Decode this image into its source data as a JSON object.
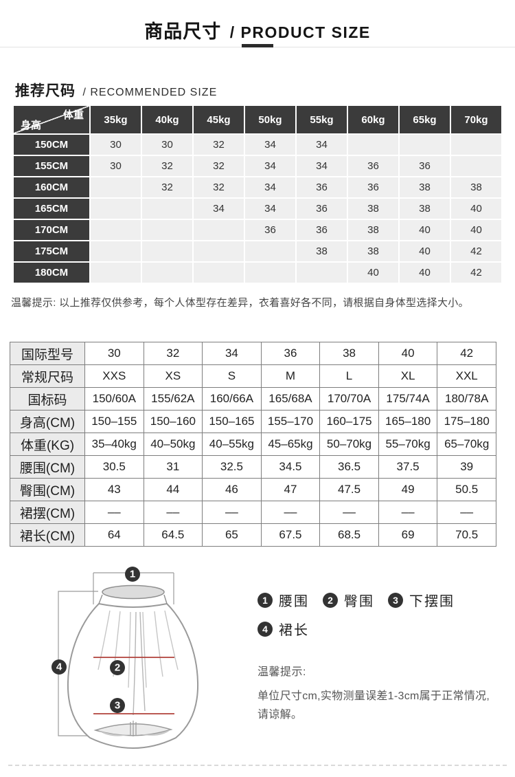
{
  "page": {
    "title_cn": "商品尺寸",
    "title_en": "/ PRODUCT SIZE"
  },
  "recommended": {
    "heading_cn": "推荐尺码",
    "heading_en": "/ RECOMMENDED SIZE",
    "table": {
      "corner": {
        "top_right": "体重",
        "bottom_left": "身高"
      },
      "weight_headers": [
        "35kg",
        "40kg",
        "45kg",
        "50kg",
        "55kg",
        "60kg",
        "65kg",
        "70kg"
      ],
      "rows": [
        {
          "height": "150CM",
          "values": [
            "30",
            "30",
            "32",
            "34",
            "34",
            "",
            "",
            ""
          ]
        },
        {
          "height": "155CM",
          "values": [
            "30",
            "32",
            "32",
            "34",
            "34",
            "36",
            "36",
            ""
          ]
        },
        {
          "height": "160CM",
          "values": [
            "",
            "32",
            "32",
            "34",
            "36",
            "36",
            "38",
            "38"
          ]
        },
        {
          "height": "165CM",
          "values": [
            "",
            "",
            "34",
            "34",
            "36",
            "38",
            "38",
            "40"
          ]
        },
        {
          "height": "170CM",
          "values": [
            "",
            "",
            "",
            "36",
            "36",
            "38",
            "40",
            "40"
          ]
        },
        {
          "height": "175CM",
          "values": [
            "",
            "",
            "",
            "",
            "38",
            "38",
            "40",
            "42"
          ]
        },
        {
          "height": "180CM",
          "values": [
            "",
            "",
            "",
            "",
            "",
            "40",
            "40",
            "42"
          ]
        }
      ]
    },
    "note": "温馨提示: 以上推荐仅供参考，每个人体型存在差异，衣着喜好各不同，请根据自身体型选择大小。"
  },
  "size_table": {
    "rows": [
      {
        "label": "国际型号",
        "values": [
          "30",
          "32",
          "34",
          "36",
          "38",
          "40",
          "42"
        ]
      },
      {
        "label": "常规尺码",
        "values": [
          "XXS",
          "XS",
          "S",
          "M",
          "L",
          "XL",
          "XXL"
        ]
      },
      {
        "label": "国标码",
        "values": [
          "150/60A",
          "155/62A",
          "160/66A",
          "165/68A",
          "170/70A",
          "175/74A",
          "180/78A"
        ]
      },
      {
        "label": "身高(CM)",
        "values": [
          "150–155",
          "150–160",
          "150–165",
          "155–170",
          "160–175",
          "165–180",
          "175–180"
        ]
      },
      {
        "label": "体重(KG)",
        "values": [
          "35–40kg",
          "40–50kg",
          "40–55kg",
          "45–65kg",
          "50–70kg",
          "55–70kg",
          "65–70kg"
        ]
      },
      {
        "label": "腰围(CM)",
        "values": [
          "30.5",
          "31",
          "32.5",
          "34.5",
          "36.5",
          "37.5",
          "39"
        ]
      },
      {
        "label": "臀围(CM)",
        "values": [
          "43",
          "44",
          "46",
          "47",
          "47.5",
          "49",
          "50.5"
        ]
      },
      {
        "label": "裙摆(CM)",
        "values": [
          "––",
          "––",
          "––",
          "––",
          "––",
          "––",
          "––"
        ]
      },
      {
        "label": "裙长(CM)",
        "values": [
          "64",
          "64.5",
          "65",
          "67.5",
          "68.5",
          "69",
          "70.5"
        ]
      }
    ]
  },
  "measure": {
    "legend": [
      {
        "num": "1",
        "label": "腰围"
      },
      {
        "num": "2",
        "label": "臀围"
      },
      {
        "num": "3",
        "label": "下摆围"
      },
      {
        "num": "4",
        "label": "裙长"
      }
    ],
    "note_title": "温馨提示:",
    "note_body": "单位尺寸cm,实物测量误差1-3cm属于正常情况,请谅解。"
  },
  "colors": {
    "header_dark": "#3b3b3b",
    "cell_gray": "#efefef",
    "table_border": "#7d7d7d",
    "red_line": "#b0413a",
    "badge": "#333333"
  }
}
